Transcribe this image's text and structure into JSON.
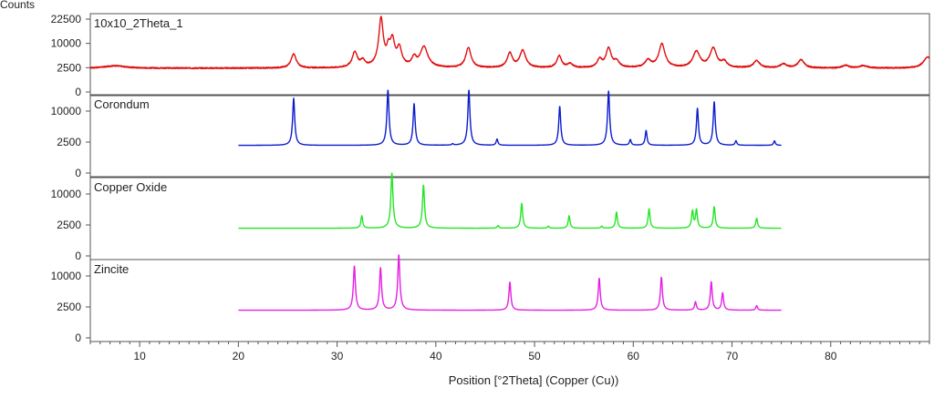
{
  "chart_data": {
    "type": "line",
    "ylabel": "Counts",
    "xlabel": "Position [°2Theta] (Copper (Cu))",
    "xlim": [
      5,
      90
    ],
    "x_ticks": [
      10,
      20,
      30,
      40,
      50,
      60,
      70,
      80
    ],
    "x_tick_labels": [
      "10",
      "20",
      "30",
      "40",
      "50",
      "60",
      "70",
      "80"
    ],
    "grid": false,
    "panels": [
      {
        "name": "10x10_2Theta_1",
        "color": "#e01010",
        "y_ticks": [
          0,
          2500,
          10000,
          22500
        ],
        "y_tick_labels": [
          "0",
          "2500",
          "10000",
          "22500"
        ],
        "x_range": [
          5,
          90
        ],
        "baseline": 2400,
        "noise": 250,
        "ymax": 26000,
        "peaks": [
          {
            "x": 7.5,
            "h": 500,
            "w": 1.2
          },
          {
            "x": 25.6,
            "h": 3700,
            "w": 0.28
          },
          {
            "x": 31.8,
            "h": 4300,
            "w": 0.28
          },
          {
            "x": 32.6,
            "h": 1600,
            "w": 0.25
          },
          {
            "x": 34.45,
            "h": 20800,
            "w": 0.22
          },
          {
            "x": 35.2,
            "h": 5000,
            "w": 0.2
          },
          {
            "x": 35.6,
            "h": 9000,
            "w": 0.25
          },
          {
            "x": 36.3,
            "h": 5700,
            "w": 0.25
          },
          {
            "x": 37.8,
            "h": 2500,
            "w": 0.25
          },
          {
            "x": 38.8,
            "h": 6200,
            "w": 0.4
          },
          {
            "x": 43.3,
            "h": 5900,
            "w": 0.28
          },
          {
            "x": 47.5,
            "h": 4000,
            "w": 0.28
          },
          {
            "x": 48.8,
            "h": 4900,
            "w": 0.32
          },
          {
            "x": 52.5,
            "h": 3100,
            "w": 0.26
          },
          {
            "x": 53.6,
            "h": 900,
            "w": 0.3
          },
          {
            "x": 56.6,
            "h": 2100,
            "w": 0.26
          },
          {
            "x": 57.5,
            "h": 5700,
            "w": 0.28
          },
          {
            "x": 58.3,
            "h": 1500,
            "w": 0.3
          },
          {
            "x": 61.5,
            "h": 1800,
            "w": 0.35
          },
          {
            "x": 62.9,
            "h": 7400,
            "w": 0.32
          },
          {
            "x": 66.4,
            "h": 4500,
            "w": 0.38
          },
          {
            "x": 68.1,
            "h": 5700,
            "w": 0.36
          },
          {
            "x": 69.2,
            "h": 1400,
            "w": 0.3
          },
          {
            "x": 72.5,
            "h": 1700,
            "w": 0.35
          },
          {
            "x": 75.2,
            "h": 900,
            "w": 0.35
          },
          {
            "x": 77.0,
            "h": 2000,
            "w": 0.35
          },
          {
            "x": 81.5,
            "h": 600,
            "w": 0.35
          },
          {
            "x": 83.3,
            "h": 500,
            "w": 0.5
          },
          {
            "x": 89.8,
            "h": 2800,
            "w": 0.45
          }
        ]
      },
      {
        "name": "Corondum",
        "color": "#0a1ccc",
        "y_ticks": [
          0,
          2500,
          10000
        ],
        "y_tick_labels": [
          "0",
          "2500",
          "10000"
        ],
        "x_range": [
          20,
          75
        ],
        "baseline": 2000,
        "noise": 0,
        "ymax": 16000,
        "peaks": [
          {
            "x": 25.6,
            "h": 12600,
            "w": 0.1
          },
          {
            "x": 35.15,
            "h": 16000,
            "w": 0.1
          },
          {
            "x": 37.8,
            "h": 10500,
            "w": 0.1
          },
          {
            "x": 41.7,
            "h": 200,
            "w": 0.1
          },
          {
            "x": 43.35,
            "h": 16000,
            "w": 0.1
          },
          {
            "x": 46.2,
            "h": 1000,
            "w": 0.1
          },
          {
            "x": 52.55,
            "h": 9600,
            "w": 0.1
          },
          {
            "x": 57.5,
            "h": 15500,
            "w": 0.1
          },
          {
            "x": 59.7,
            "h": 900,
            "w": 0.1
          },
          {
            "x": 61.3,
            "h": 2700,
            "w": 0.1
          },
          {
            "x": 66.5,
            "h": 8900,
            "w": 0.1
          },
          {
            "x": 68.2,
            "h": 11200,
            "w": 0.1
          },
          {
            "x": 70.4,
            "h": 700,
            "w": 0.1
          },
          {
            "x": 74.3,
            "h": 700,
            "w": 0.1
          }
        ]
      },
      {
        "name": "Copper Oxide",
        "color": "#22e622",
        "y_ticks": [
          0,
          2500,
          10000
        ],
        "y_tick_labels": [
          "0",
          "2500",
          "10000"
        ],
        "x_range": [
          20,
          75
        ],
        "baseline": 2000,
        "noise": 0,
        "ymax": 16000,
        "peaks": [
          {
            "x": 32.5,
            "h": 2200,
            "w": 0.1
          },
          {
            "x": 35.55,
            "h": 16000,
            "w": 0.1
          },
          {
            "x": 38.75,
            "h": 11100,
            "w": 0.1
          },
          {
            "x": 46.3,
            "h": 400,
            "w": 0.1
          },
          {
            "x": 48.7,
            "h": 5200,
            "w": 0.1
          },
          {
            "x": 51.4,
            "h": 300,
            "w": 0.1
          },
          {
            "x": 53.5,
            "h": 2200,
            "w": 0.1
          },
          {
            "x": 56.8,
            "h": 300,
            "w": 0.1
          },
          {
            "x": 58.3,
            "h": 3000,
            "w": 0.1
          },
          {
            "x": 61.6,
            "h": 3800,
            "w": 0.1
          },
          {
            "x": 66.0,
            "h": 3300,
            "w": 0.1
          },
          {
            "x": 66.4,
            "h": 3600,
            "w": 0.1
          },
          {
            "x": 68.2,
            "h": 4300,
            "w": 0.1
          },
          {
            "x": 72.5,
            "h": 1700,
            "w": 0.1
          }
        ]
      },
      {
        "name": "Zincite",
        "color": "#e41ee4",
        "y_ticks": [
          0,
          2500,
          10000
        ],
        "y_tick_labels": [
          "0",
          "2500",
          "10000"
        ],
        "x_range": [
          20,
          75
        ],
        "baseline": 2000,
        "noise": 0,
        "ymax": 16000,
        "peaks": [
          {
            "x": 31.75,
            "h": 11500,
            "w": 0.1
          },
          {
            "x": 34.4,
            "h": 10800,
            "w": 0.1
          },
          {
            "x": 36.25,
            "h": 16000,
            "w": 0.1
          },
          {
            "x": 47.5,
            "h": 6100,
            "w": 0.1
          },
          {
            "x": 56.55,
            "h": 7300,
            "w": 0.1
          },
          {
            "x": 62.85,
            "h": 7600,
            "w": 0.1
          },
          {
            "x": 66.3,
            "h": 1400,
            "w": 0.1
          },
          {
            "x": 67.9,
            "h": 6200,
            "w": 0.1
          },
          {
            "x": 69.05,
            "h": 3300,
            "w": 0.1
          },
          {
            "x": 72.5,
            "h": 700,
            "w": 0.1
          }
        ]
      }
    ]
  }
}
